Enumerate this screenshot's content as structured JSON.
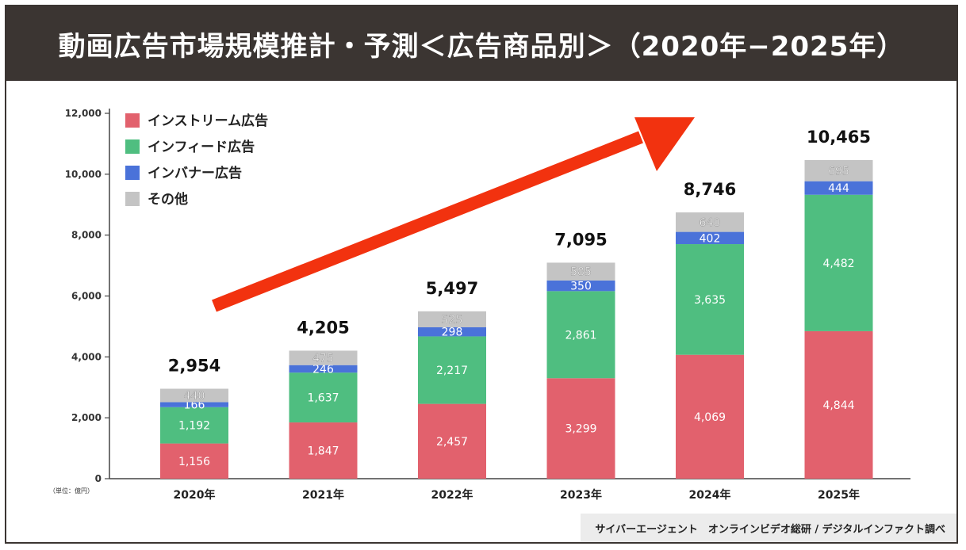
{
  "title": "動画広告市場規模推計・予測＜広告商品別＞（2020年−2025年）",
  "unit_label": "（単位：億円）",
  "source": "サイバーエージェント　オンラインビデオ総研 / デジタルインファクト調べ",
  "colors": {
    "title_bg": "#3b3532",
    "instream": "#e2616d",
    "infeed": "#4fbe80",
    "inbanner": "#4a72d9",
    "other": "#c4c4c4",
    "arrow": "#f2320f"
  },
  "chart_data": {
    "type": "bar",
    "stacked": true,
    "title": "動画広告市場規模推計・予測＜広告商品別＞（2020年−2025年）",
    "xlabel": "",
    "ylabel": "（単位：億円）",
    "ylim": [
      0,
      12000
    ],
    "yticks": [
      0,
      2000,
      4000,
      6000,
      8000,
      10000,
      12000
    ],
    "ytick_labels": [
      "0",
      "2,000",
      "4,000",
      "6,000",
      "8,000",
      "10,000",
      "12,000"
    ],
    "categories": [
      "2020年",
      "2021年",
      "2022年",
      "2023年",
      "2024年",
      "2025年"
    ],
    "series": [
      {
        "name": "インストリーム広告",
        "key": "instream",
        "values": [
          1156,
          1847,
          2457,
          3299,
          4069,
          4844
        ],
        "labels": [
          "1,156",
          "1,847",
          "2,457",
          "3,299",
          "4,069",
          "4,844"
        ]
      },
      {
        "name": "インフィード広告",
        "key": "infeed",
        "values": [
          1192,
          1637,
          2217,
          2861,
          3635,
          4482
        ],
        "labels": [
          "1,192",
          "1,637",
          "2,217",
          "2,861",
          "3,635",
          "4,482"
        ]
      },
      {
        "name": "インバナー広告",
        "key": "inbanner",
        "values": [
          166,
          246,
          298,
          350,
          402,
          444
        ],
        "labels": [
          "166",
          "246",
          "298",
          "350",
          "402",
          "444"
        ]
      },
      {
        "name": "その他",
        "key": "other",
        "values": [
          440,
          475,
          525,
          585,
          640,
          695
        ],
        "labels": [
          "440",
          "475",
          "525",
          "585",
          "640",
          "695"
        ]
      }
    ],
    "totals": [
      2954,
      4205,
      5497,
      7095,
      8746,
      10465
    ],
    "total_labels": [
      "2,954",
      "4,205",
      "5,497",
      "7,095",
      "8,746",
      "10,465"
    ],
    "legend_position": "top-left",
    "annotation": "red arrow indicating upward growth trend",
    "grid": false
  }
}
